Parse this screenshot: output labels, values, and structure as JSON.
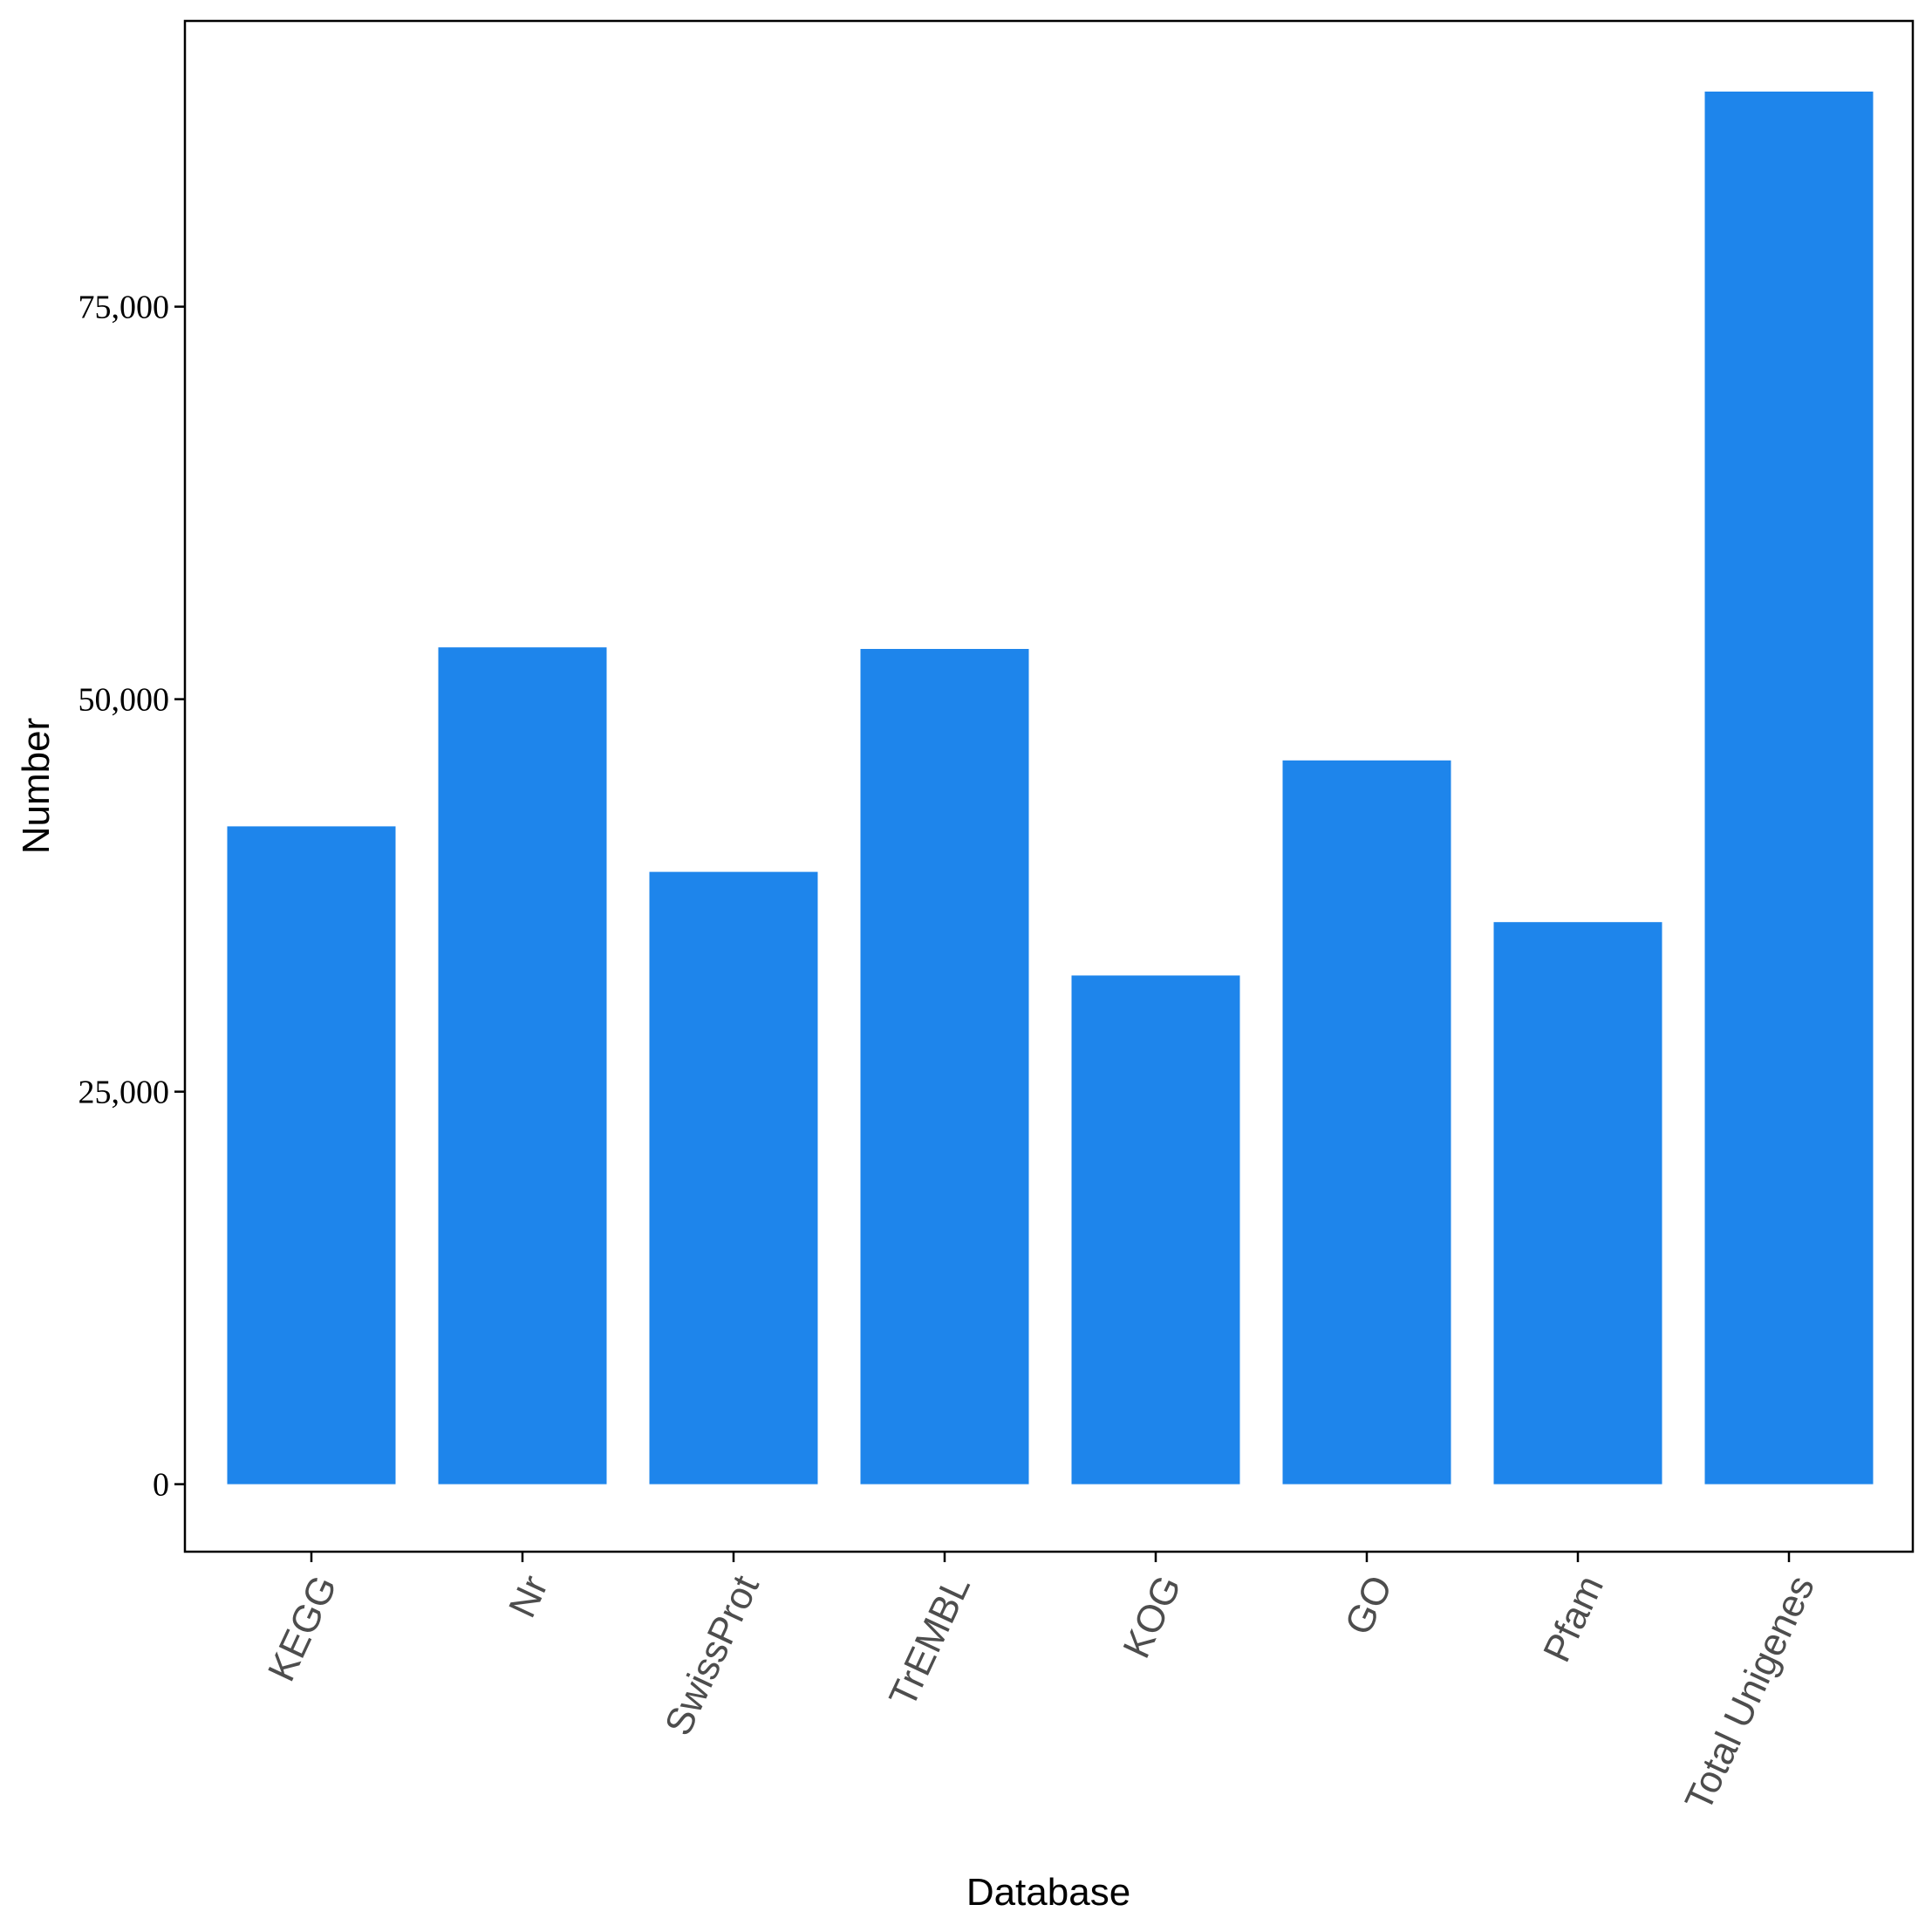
{
  "chart_data": {
    "type": "bar",
    "title": "",
    "xlabel": "Database",
    "ylabel": "Number",
    "categories": [
      "KEGG",
      "Nr",
      "SwissProt",
      "TrEMBL",
      "KOG",
      "GO",
      "Pfam",
      "Total Unigenes"
    ],
    "values": [
      41900,
      53300,
      39000,
      53200,
      32400,
      46100,
      35800,
      88700
    ],
    "ylim": [
      -4300,
      93200
    ],
    "yticks": [
      0,
      25000,
      50000,
      75000
    ],
    "ytick_labels": [
      "0",
      "25,000",
      "50,000",
      "75,000"
    ],
    "bar_color": "#1e85eb",
    "grid": false,
    "legend": "none"
  }
}
